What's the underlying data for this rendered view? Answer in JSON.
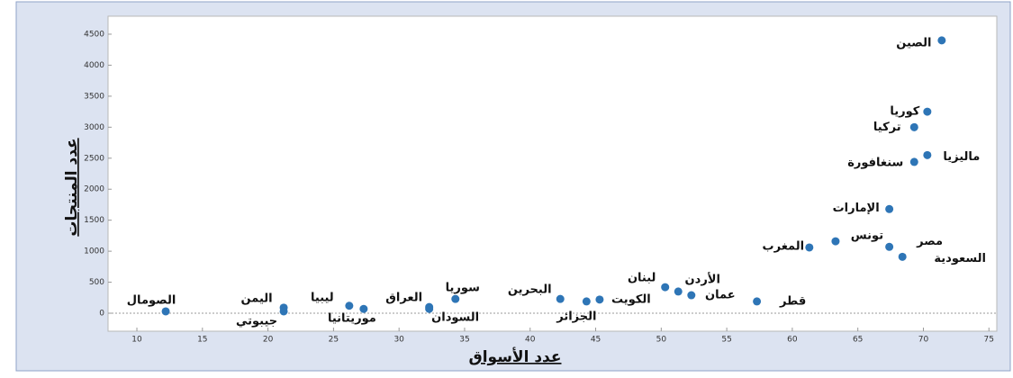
{
  "chart_data": {
    "type": "scatter",
    "x_label": "عدد الأسواق",
    "y_label": "عدد المنتجات",
    "color": "#2e75b6",
    "labels": [
      "الصين",
      "كوريا",
      "تركيا",
      "ماليزيا",
      "سنغافورة",
      "الإمارات",
      "المغرب",
      "تونس",
      "مصر",
      "السعودية",
      "قطر",
      "عمان",
      "الأردن",
      "لبنان",
      "الكويت",
      "الجزائر",
      "البحرين",
      "سوريا",
      "السودان",
      "العراق",
      "موريتانيا",
      "ليبيا",
      "اليمن",
      "جيبوتي",
      "الصومال"
    ],
    "x": [
      71.4,
      70.3,
      69.3,
      70.3,
      69.3,
      67.4,
      61.3,
      63.3,
      67.4,
      68.4,
      57.3,
      52.3,
      51.3,
      50.3,
      45.3,
      44.3,
      42.3,
      34.3,
      32.3,
      32.3,
      27.3,
      26.2,
      21.2,
      21.2,
      12.2
    ],
    "y": [
      4400,
      3250,
      3000,
      2550,
      2440,
      1680,
      1060,
      1160,
      1070,
      910,
      190,
      290,
      350,
      420,
      220,
      190,
      230,
      230,
      70,
      100,
      70,
      120,
      90,
      30,
      30
    ],
    "xlim": [
      7.8,
      75.6
    ],
    "ylim": [
      -290,
      4790
    ],
    "xticks": [
      10,
      15,
      20,
      25,
      30,
      35,
      40,
      45,
      50,
      55,
      60,
      65,
      70,
      75
    ],
    "yticks": [
      0,
      500,
      1000,
      1500,
      2000,
      2500,
      3000,
      3500,
      4000,
      4500
    ]
  }
}
